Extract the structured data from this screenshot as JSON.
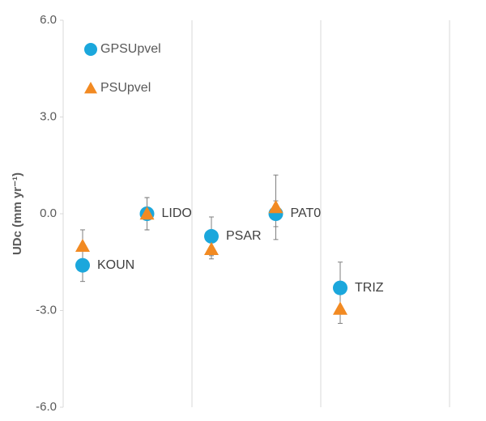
{
  "chart_data": {
    "type": "scatter",
    "y_label": "UDc (mm yr⁻¹)",
    "categories": [
      "KOUN",
      "LIDO",
      "PSAR",
      "PAT0",
      "TRIZ"
    ],
    "series": [
      {
        "name": "GPSUpvel",
        "color": "#1ba7dc",
        "marker": "circle",
        "values": [
          -1.6,
          0.0,
          -0.7,
          0.0,
          -2.3
        ],
        "errors": [
          0.5,
          0.5,
          0.6,
          0.4,
          0.8
        ]
      },
      {
        "name": "PSUpvel",
        "color": "#f28a22",
        "marker": "triangle",
        "values": [
          -1.0,
          0.0,
          -1.1,
          0.2,
          -2.95
        ],
        "errors": [
          0.5,
          0.5,
          0.3,
          1.0,
          0.45
        ]
      }
    ],
    "ylim": [
      -6,
      6
    ],
    "yticks": [
      {
        "value": -6,
        "label": "-6.0"
      },
      {
        "value": -3,
        "label": "-3.0"
      },
      {
        "value": 0,
        "label": "0.0"
      },
      {
        "value": 3,
        "label": "3.0"
      },
      {
        "value": 6,
        "label": "6.0"
      }
    ],
    "legend": "top-left"
  }
}
